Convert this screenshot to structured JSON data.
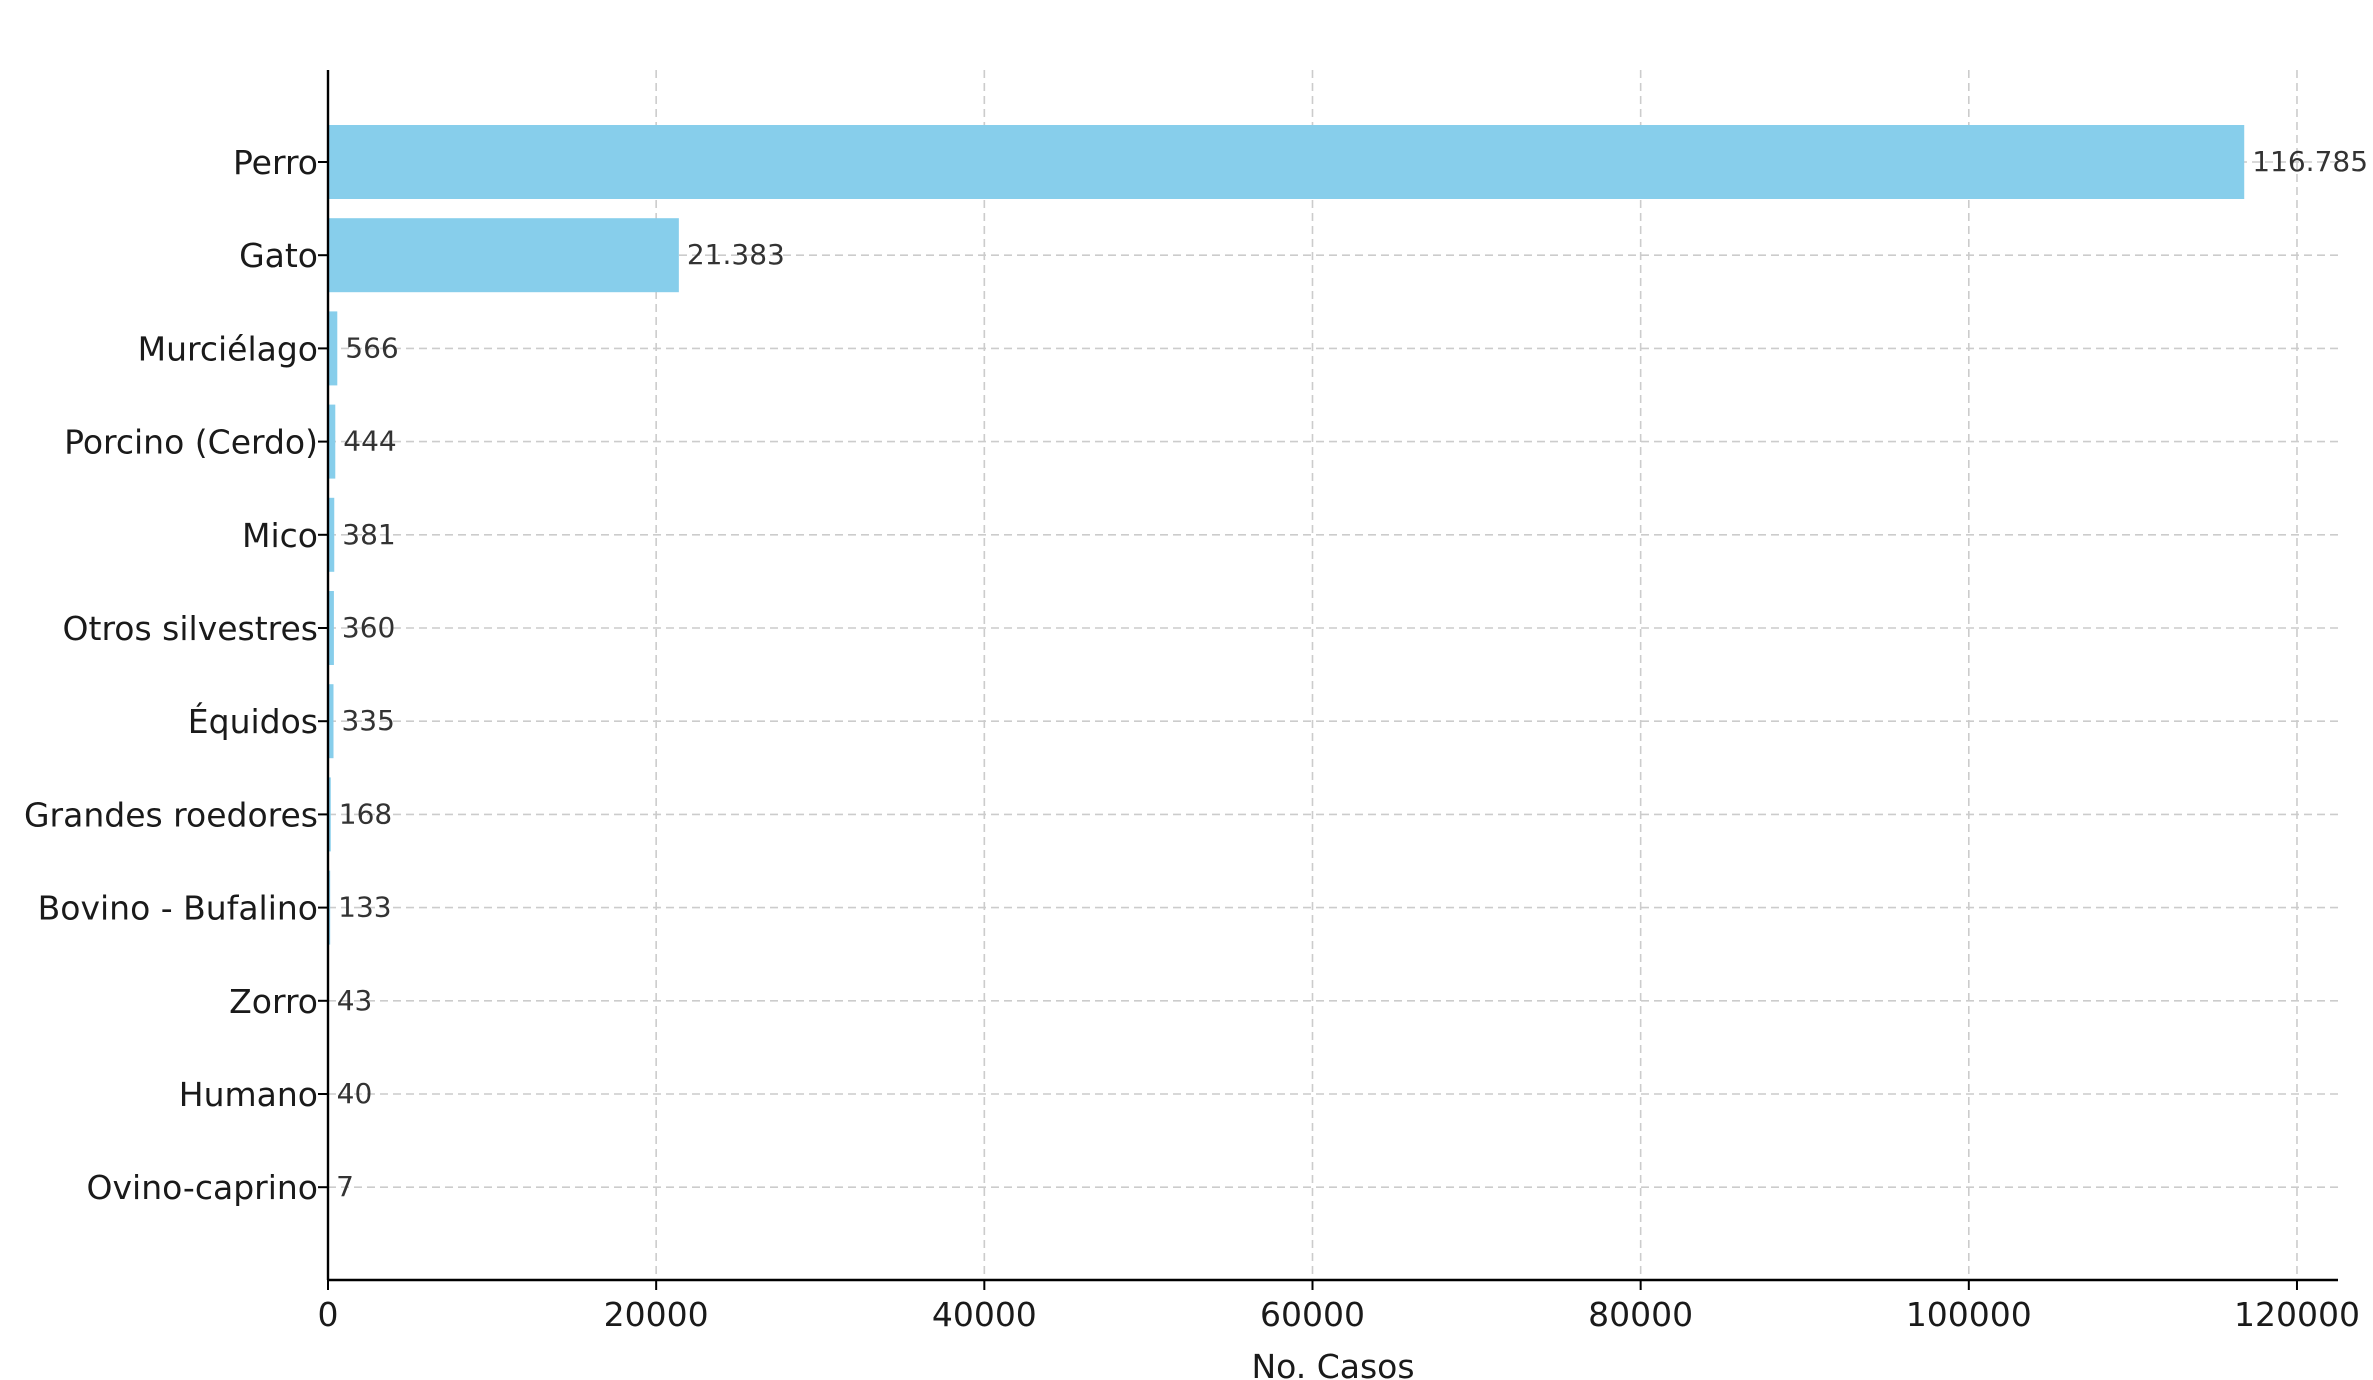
{
  "chart_data": {
    "type": "bar",
    "orientation": "horizontal",
    "title": "",
    "xlabel": "No. Casos",
    "ylabel": "",
    "categories": [
      "Perro",
      "Gato",
      "Murciélago",
      "Porcino (Cerdo)",
      "Mico",
      "Otros silvestres",
      "Équidos",
      "Grandes roedores",
      "Bovino - Bufalino",
      "Zorro",
      "Humano",
      "Ovino-caprino"
    ],
    "values": [
      116785,
      21383,
      566,
      444,
      381,
      360,
      335,
      168,
      133,
      43,
      40,
      7
    ],
    "value_labels": [
      "116.785",
      "21.383",
      "566",
      "444",
      "381",
      "360",
      "335",
      "168",
      "133",
      "43",
      "40",
      "7"
    ],
    "xlim": [
      0,
      122500
    ],
    "xticks": [
      0,
      20000,
      40000,
      60000,
      80000,
      100000,
      120000
    ],
    "xtick_labels": [
      "0",
      "20000",
      "40000",
      "60000",
      "80000",
      "100000",
      "120000"
    ],
    "grid": true,
    "bar_color": "#87ceeb"
  }
}
